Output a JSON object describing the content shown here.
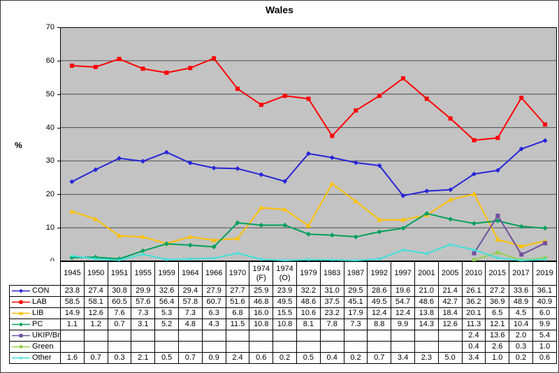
{
  "title": "Wales",
  "y_axis": {
    "label": "%",
    "ticks": [
      70,
      60,
      50,
      40,
      30,
      20,
      10,
      0
    ]
  },
  "chart_data": {
    "type": "line",
    "title": "Wales",
    "xlabel": "",
    "ylabel": "%",
    "ylim": [
      0,
      70
    ],
    "grid": "horizontal gridlines every 10",
    "plot_background": "#c3c3c3",
    "gridline_color": "#4d4d4d",
    "legend_position": "table-left",
    "categories": [
      "1945",
      "1950",
      "1951",
      "1955",
      "1959",
      "1964",
      "1966",
      "1970",
      "1974 (F)",
      "1974 (O)",
      "1979",
      "1983",
      "1987",
      "1992",
      "1997",
      "2001",
      "2005",
      "2010",
      "2015",
      "2017",
      "2019"
    ],
    "series": [
      {
        "name": "CON",
        "color": "#2626d8",
        "marker": "diamond",
        "values": [
          23.8,
          27.4,
          30.8,
          29.9,
          32.6,
          29.4,
          27.9,
          27.7,
          25.9,
          23.9,
          32.2,
          31.0,
          29.5,
          28.6,
          19.6,
          21.0,
          21.4,
          26.1,
          27.2,
          33.6,
          36.1
        ]
      },
      {
        "name": "LAB",
        "color": "#ff0000",
        "marker": "square",
        "values": [
          58.5,
          58.1,
          60.5,
          57.6,
          56.4,
          57.8,
          60.7,
          51.6,
          46.8,
          49.5,
          48.6,
          37.5,
          45.1,
          49.5,
          54.7,
          48.6,
          42.7,
          36.2,
          36.9,
          48.9,
          40.9
        ]
      },
      {
        "name": "LIB",
        "color": "#ffc000",
        "marker": "triangle",
        "values": [
          14.9,
          12.6,
          7.6,
          7.3,
          5.3,
          7.3,
          6.3,
          6.8,
          16.0,
          15.5,
          10.6,
          23.2,
          17.9,
          12.4,
          12.4,
          13.8,
          18.4,
          20.1,
          6.5,
          4.5,
          6.0
        ]
      },
      {
        "name": "PC",
        "color": "#00a05a",
        "marker": "diamond",
        "values": [
          1.1,
          1.2,
          0.7,
          3.1,
          5.2,
          4.8,
          4.3,
          11.5,
          10.8,
          10.8,
          8.1,
          7.8,
          7.3,
          8.8,
          9.9,
          14.3,
          12.6,
          11.3,
          12.1,
          10.4,
          9.9
        ]
      },
      {
        "name": "UKIP/Br",
        "color": "#7050a0",
        "marker": "square",
        "values": [
          null,
          null,
          null,
          null,
          null,
          null,
          null,
          null,
          null,
          null,
          null,
          null,
          null,
          null,
          null,
          null,
          null,
          2.4,
          13.6,
          2.0,
          5.4
        ]
      },
      {
        "name": "Green",
        "color": "#92d050",
        "marker": "circle",
        "values": [
          null,
          null,
          null,
          null,
          null,
          null,
          null,
          null,
          null,
          null,
          null,
          null,
          null,
          null,
          null,
          null,
          null,
          0.4,
          2.6,
          0.3,
          1.0
        ]
      },
      {
        "name": "Other",
        "color": "#3fe0dc",
        "marker": "cross",
        "values": [
          1.6,
          0.7,
          0.3,
          2.1,
          0.5,
          0.7,
          0.9,
          2.4,
          0.6,
          0.2,
          0.5,
          0.4,
          0.2,
          0.7,
          3.4,
          2.3,
          5.0,
          3.4,
          1.0,
          0.2,
          0.6
        ]
      }
    ]
  }
}
